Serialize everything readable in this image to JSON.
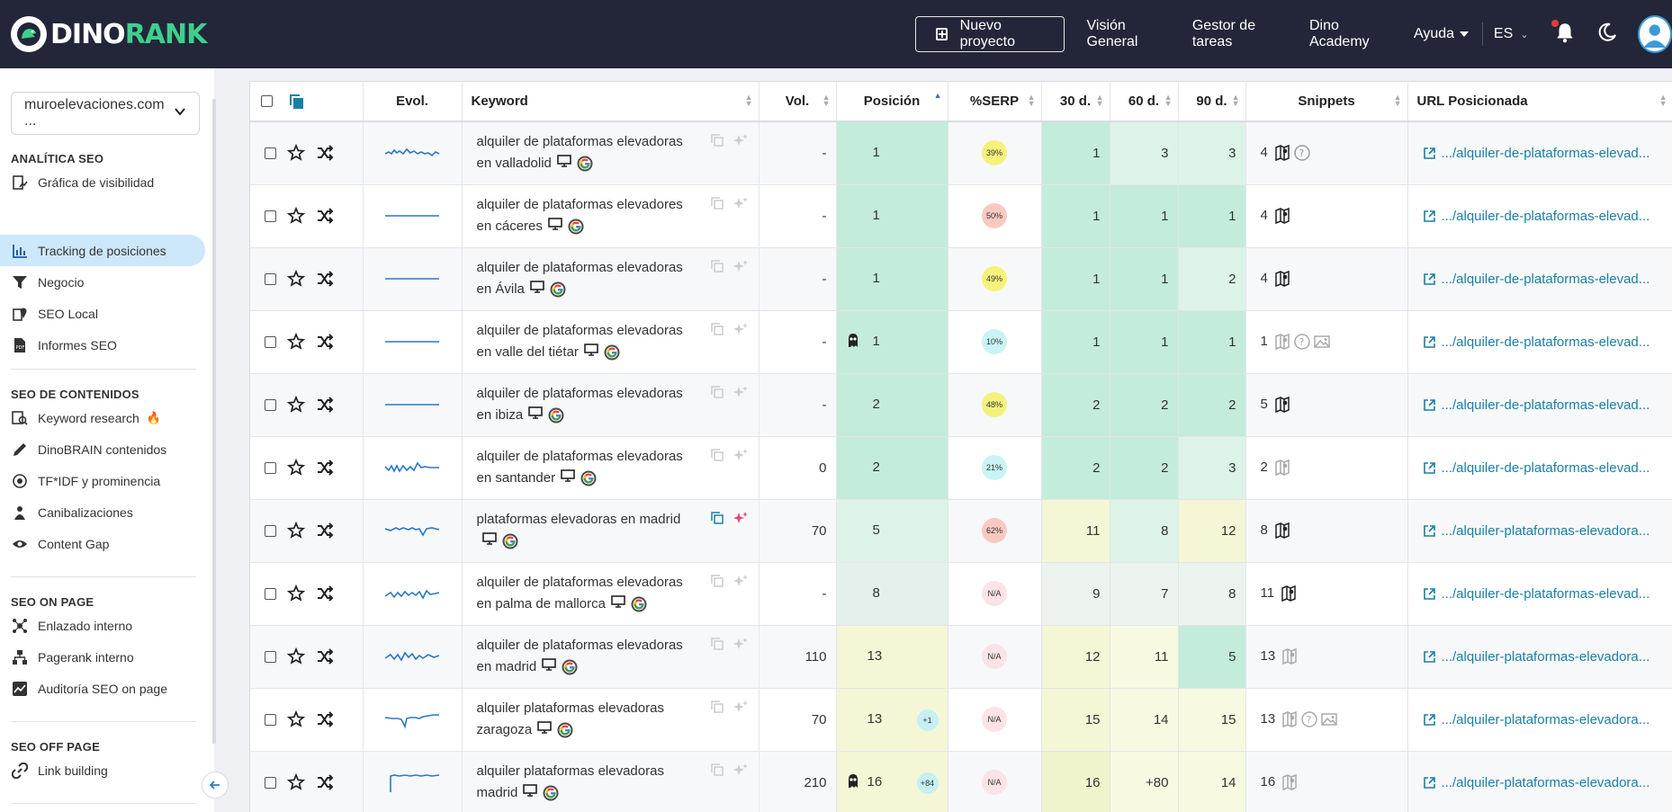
{
  "brand": {
    "part1": "DINO",
    "part2": "RANK"
  },
  "header": {
    "new_project": "Nuevo proyecto",
    "nav": [
      "Visión General",
      "Gestor de tareas",
      "Dino Academy"
    ],
    "help": "Ayuda",
    "lang": "ES"
  },
  "sidebar": {
    "project": "muroelevaciones.com ...",
    "sections": [
      {
        "title": "ANALÍTICA SEO",
        "items": [
          "Gráfica de visibilidad",
          "Tracking de posiciones",
          "Negocio",
          "SEO Local",
          "Informes SEO"
        ]
      },
      {
        "title": "SEO DE CONTENIDOS",
        "items": [
          "Keyword research",
          "DinoBRAIN contenidos",
          "TF*IDF y prominencia",
          "Canibalizaciones",
          "Content Gap"
        ]
      },
      {
        "title": "SEO ON PAGE",
        "items": [
          "Enlazado interno",
          "Pagerank interno",
          "Auditoría SEO on page"
        ]
      },
      {
        "title": "SEO OFF PAGE",
        "items": [
          "Link building"
        ]
      }
    ]
  },
  "table": {
    "headers": {
      "evol": "Evol.",
      "keyword": "Keyword",
      "vol": "Vol.",
      "pos": "Posición",
      "serp": "%SERP",
      "d30": "30 d.",
      "d60": "60 d.",
      "d90": "90 d.",
      "snippets": "Snippets",
      "url": "URL Posicionada"
    },
    "rows": [
      {
        "l1": "alquiler de plataformas elevadoras",
        "l2": "en valladolid",
        "vol": "-",
        "pos": "1",
        "chg": "",
        "serp": "39%",
        "d30": "1",
        "d60": "3",
        "d90": "3",
        "snip": "4",
        "url": ".../alquiler-de-plataformas-elevad..."
      },
      {
        "l1": "alquiler de plataformas elevadores",
        "l2": "en cáceres",
        "vol": "-",
        "pos": "1",
        "chg": "",
        "serp": "50%",
        "d30": "1",
        "d60": "1",
        "d90": "1",
        "snip": "4",
        "url": ".../alquiler-de-plataformas-elevad..."
      },
      {
        "l1": "alquiler de plataformas elevadoras",
        "l2": "en Ávila",
        "vol": "-",
        "pos": "1",
        "chg": "",
        "serp": "49%",
        "d30": "1",
        "d60": "1",
        "d90": "2",
        "snip": "4",
        "url": ".../alquiler-de-plataformas-elevad..."
      },
      {
        "l1": "alquiler de plataformas elevadoras",
        "l2": "en valle del tiétar",
        "vol": "-",
        "pos": "1",
        "chg": "",
        "serp": "10%",
        "d30": "1",
        "d60": "1",
        "d90": "1",
        "snip": "1",
        "url": ".../alquiler-de-plataformas-elevad..."
      },
      {
        "l1": "alquiler de plataformas elevadoras",
        "l2": "en ibiza",
        "vol": "-",
        "pos": "2",
        "chg": "",
        "serp": "48%",
        "d30": "2",
        "d60": "2",
        "d90": "2",
        "snip": "5",
        "url": ".../alquiler-de-plataformas-elevad..."
      },
      {
        "l1": "alquiler de plataformas elevadoras",
        "l2": "en santander",
        "vol": "0",
        "pos": "2",
        "chg": "",
        "serp": "21%",
        "d30": "2",
        "d60": "2",
        "d90": "3",
        "snip": "2",
        "url": ".../alquiler-de-plataformas-elevad..."
      },
      {
        "l1": "plataformas elevadoras en madrid",
        "l2": "",
        "vol": "70",
        "pos": "5",
        "chg": "",
        "serp": "62%",
        "d30": "11",
        "d60": "8",
        "d90": "12",
        "snip": "8",
        "url": ".../alquiler-plataformas-elevadora..."
      },
      {
        "l1": "alquiler de plataformas elevadoras",
        "l2": "en palma de mallorca",
        "vol": "-",
        "pos": "8",
        "chg": "",
        "serp": "N/A",
        "d30": "9",
        "d60": "7",
        "d90": "8",
        "snip": "11",
        "url": ".../alquiler-de-plataformas-elevad..."
      },
      {
        "l1": "alquiler de plataformas elevadoras",
        "l2": "en madrid",
        "vol": "110",
        "pos": "13",
        "chg": "",
        "serp": "N/A",
        "d30": "12",
        "d60": "11",
        "d90": "5",
        "snip": "13",
        "url": ".../alquiler-plataformas-elevadora..."
      },
      {
        "l1": "alquiler plataformas elevadoras",
        "l2": "zaragoza",
        "vol": "70",
        "pos": "13",
        "chg": "+1",
        "serp": "N/A",
        "d30": "15",
        "d60": "14",
        "d90": "15",
        "snip": "13",
        "url": ".../alquiler-plataformas-elevadora..."
      },
      {
        "l1": "alquiler plataformas elevadoras",
        "l2": "madrid",
        "vol": "210",
        "pos": "16",
        "chg": "+84",
        "serp": "N/A",
        "d30": "16",
        "d60": "+80",
        "d90": "14",
        "snip": "16",
        "url": ".../alquiler-plataformas-elevadora..."
      }
    ]
  }
}
